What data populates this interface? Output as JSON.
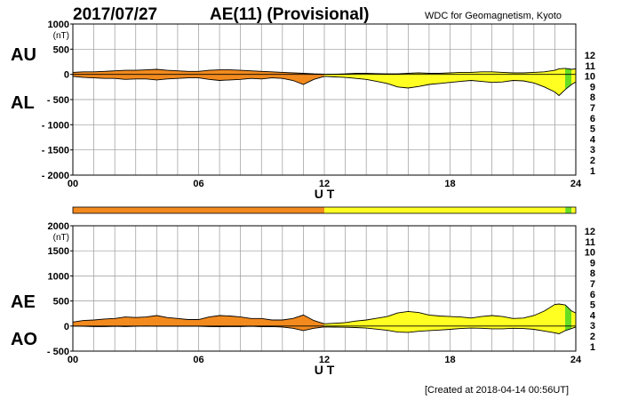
{
  "header": {
    "date": "2017/07/27",
    "title": "AE(11) (Provisional)",
    "source": "WDC for Geomagnetism, Kyoto"
  },
  "footer": {
    "created": "[Created at 2018-04-14 00:56UT]"
  },
  "legend": {
    "levels": [
      "12",
      "11",
      "10",
      "9",
      "8",
      "7",
      "6",
      "5",
      "4",
      "3",
      "2",
      "1"
    ],
    "colors": [
      "#ff1493",
      "#e00000",
      "#ff9900",
      "#ffee00",
      "#99ee33",
      "#00dddd",
      "#0066ff",
      "#0000cc",
      "#cc00cc",
      "#000000",
      "#555555",
      "#bbbbbb"
    ]
  },
  "colors": {
    "orange": "#f28a1e",
    "yellow": "#ffff22",
    "green": "#66dd22",
    "grid": "#999999"
  },
  "chart_data": [
    {
      "type": "area",
      "panel": "AU/AL",
      "labels": {
        "upper": "AU",
        "lower": "AL"
      },
      "unit": "(nT)",
      "xlabel": "U T",
      "xticks": [
        "00",
        "06",
        "12",
        "18",
        "24"
      ],
      "ylim": [
        -2000,
        1000
      ],
      "yticks": [
        1000,
        500,
        0,
        -500,
        -1000,
        -1500,
        -2000
      ],
      "ytick_labels": [
        "1000",
        "500",
        "0",
        "- 500",
        "- 1000",
        "- 1500",
        "- 2000"
      ],
      "grid": true,
      "x": [
        0,
        0.5,
        1,
        1.5,
        2,
        2.5,
        3,
        3.5,
        4,
        4.5,
        5,
        5.5,
        6,
        6.5,
        7,
        7.5,
        8,
        8.5,
        9,
        9.5,
        10,
        10.5,
        11,
        11.5,
        12,
        12.5,
        13,
        13.5,
        14,
        14.5,
        15,
        15.5,
        16,
        16.5,
        17,
        17.5,
        18,
        18.5,
        19,
        19.5,
        20,
        20.5,
        21,
        21.5,
        22,
        22.5,
        23,
        23.2,
        23.5,
        23.8,
        24
      ],
      "series": [
        {
          "name": "AU",
          "values": [
            40,
            50,
            50,
            60,
            70,
            80,
            80,
            90,
            100,
            80,
            70,
            60,
            60,
            80,
            90,
            90,
            80,
            70,
            60,
            50,
            40,
            30,
            20,
            10,
            5,
            5,
            10,
            20,
            20,
            15,
            10,
            10,
            20,
            30,
            20,
            20,
            30,
            40,
            40,
            50,
            50,
            40,
            30,
            30,
            40,
            50,
            80,
            110,
            120,
            100,
            110
          ]
        },
        {
          "name": "AL",
          "values": [
            -40,
            -60,
            -70,
            -80,
            -80,
            -100,
            -90,
            -90,
            -110,
            -90,
            -80,
            -70,
            -70,
            -100,
            -120,
            -110,
            -100,
            -80,
            -90,
            -70,
            -80,
            -120,
            -200,
            -100,
            -40,
            -50,
            -60,
            -80,
            -100,
            -140,
            -180,
            -250,
            -270,
            -240,
            -200,
            -180,
            -160,
            -140,
            -120,
            -140,
            -160,
            -150,
            -120,
            -130,
            -170,
            -250,
            -350,
            -420,
            -300,
            -200,
            -150
          ]
        }
      ]
    },
    {
      "type": "area",
      "panel": "AE/AO",
      "labels": {
        "upper": "AE",
        "lower": "AO"
      },
      "unit": "(nT)",
      "xlabel": "U T",
      "xticks": [
        "00",
        "06",
        "12",
        "18",
        "24"
      ],
      "ylim": [
        -500,
        2000
      ],
      "yticks": [
        2000,
        1500,
        1000,
        500,
        0,
        -500
      ],
      "ytick_labels": [
        "2000",
        "1500",
        "1000",
        "500",
        "0",
        "- 500"
      ],
      "grid": true,
      "x": [
        0,
        0.5,
        1,
        1.5,
        2,
        2.5,
        3,
        3.5,
        4,
        4.5,
        5,
        5.5,
        6,
        6.5,
        7,
        7.5,
        8,
        8.5,
        9,
        9.5,
        10,
        10.5,
        11,
        11.5,
        12,
        12.5,
        13,
        13.5,
        14,
        14.5,
        15,
        15.5,
        16,
        16.5,
        17,
        17.5,
        18,
        18.5,
        19,
        19.5,
        20,
        20.5,
        21,
        21.5,
        22,
        22.5,
        23,
        23.2,
        23.5,
        23.8,
        24
      ],
      "series": [
        {
          "name": "AE",
          "values": [
            80,
            110,
            120,
            140,
            150,
            180,
            170,
            180,
            210,
            170,
            150,
            130,
            130,
            180,
            210,
            200,
            180,
            150,
            150,
            120,
            120,
            150,
            220,
            110,
            45,
            55,
            70,
            100,
            120,
            155,
            190,
            260,
            290,
            270,
            220,
            200,
            190,
            180,
            160,
            190,
            210,
            190,
            150,
            160,
            210,
            300,
            430,
            440,
            420,
            300,
            260
          ]
        },
        {
          "name": "AO",
          "values": [
            0,
            -5,
            -10,
            -10,
            -5,
            -10,
            -5,
            0,
            -5,
            -5,
            -5,
            -5,
            -5,
            -10,
            -15,
            -10,
            -10,
            -5,
            -15,
            -10,
            -20,
            -45,
            -90,
            -45,
            -18,
            -22,
            -25,
            -30,
            -40,
            -62,
            -85,
            -120,
            -125,
            -105,
            -90,
            -80,
            -65,
            -50,
            -40,
            -45,
            -55,
            -55,
            -45,
            -50,
            -65,
            -100,
            -135,
            -155,
            -90,
            -50,
            -20
          ]
        }
      ]
    }
  ],
  "activity_bar": {
    "segments": [
      {
        "from": 0,
        "to": 12,
        "color": "orange"
      },
      {
        "from": 12,
        "to": 23.5,
        "color": "yellow"
      },
      {
        "from": 23.5,
        "to": 23.8,
        "color": "green"
      },
      {
        "from": 23.8,
        "to": 24,
        "color": "yellow"
      }
    ]
  }
}
